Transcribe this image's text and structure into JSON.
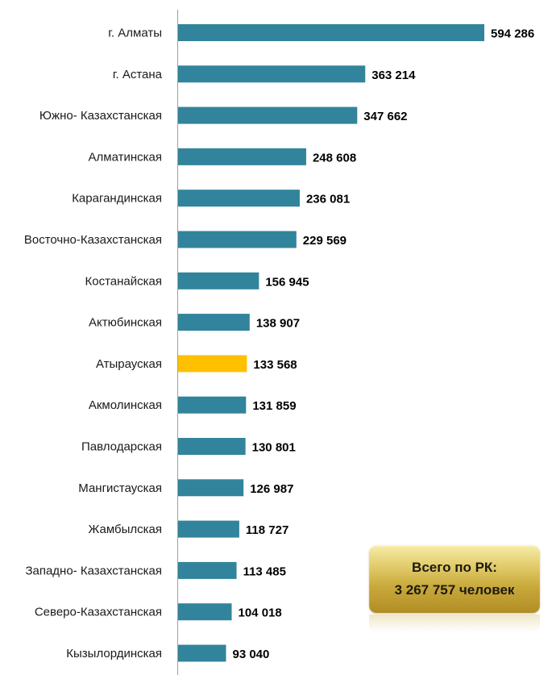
{
  "chart_data": {
    "type": "bar",
    "orientation": "horizontal",
    "categories": [
      "г. Алматы",
      "г. Астана",
      "Южно- Казахстанская",
      "Алматинская",
      "Карагандинская",
      "Восточно-Казахстанская",
      "Костанайская",
      "Актюбинская",
      "Атырауская",
      "Акмолинская",
      "Павлодарская",
      "Мангистауская",
      "Жамбылская",
      "Западно- Казахстанская",
      "Северо-Казахстанская",
      "Кызылординская"
    ],
    "values": [
      594286,
      363214,
      347662,
      248608,
      236081,
      229569,
      156945,
      138907,
      133568,
      131859,
      130801,
      126987,
      118727,
      113485,
      104018,
      93040
    ],
    "value_labels": [
      "594 286",
      "363 214",
      "347 662",
      "248 608",
      "236 081",
      "229 569",
      "156 945",
      "138 907",
      "133 568",
      "131 859",
      "130 801",
      "126 987",
      "118 727",
      "113 485",
      "104 018",
      "93 040"
    ],
    "highlight_index": 8,
    "xlim": [
      0,
      594286
    ],
    "grid": false,
    "colors": {
      "bar": "#31849b",
      "highlight": "#ffc000",
      "axis": "#a0a0a0"
    }
  },
  "total": {
    "line1": "Всего по РК:",
    "line2": "3 267 757 человек"
  }
}
